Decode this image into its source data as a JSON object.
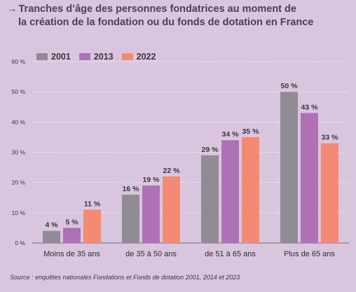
{
  "title": {
    "arrow": "→",
    "line1": "Tranches d’âge des personnes fondatrices au moment de",
    "line2": "la création de la fondation ou du fonds de dotation en France"
  },
  "source": "Source : enquêtes nationales Fondations et Fonds de dotation 2001, 2014 et 2023",
  "chart_data": {
    "type": "bar",
    "title": "Tranches d’âge des personnes fondatrices au moment de la création de la fondation ou du fonds de dotation en France",
    "categories": [
      "Moins de 35 ans",
      "de 35 à 50 ans",
      "de 51 à 65 ans",
      "Plus de 65 ans"
    ],
    "series": [
      {
        "name": "2001",
        "color": "#918b96",
        "values": [
          4,
          16,
          29,
          50
        ]
      },
      {
        "name": "2013",
        "color": "#b070b6",
        "values": [
          5,
          19,
          34,
          43
        ]
      },
      {
        "name": "2022",
        "color": "#f48a73",
        "values": [
          11,
          22,
          35,
          33
        ]
      }
    ],
    "ylim": [
      0,
      60
    ],
    "yticks": [
      0,
      10,
      20,
      30,
      40,
      50,
      60
    ],
    "ytick_labels": [
      "0 %",
      "10 %",
      "20 %",
      "30 %",
      "40 %",
      "50 %",
      "60 %"
    ],
    "value_suffix": " %",
    "legend_position": "top-left",
    "grid": true
  }
}
